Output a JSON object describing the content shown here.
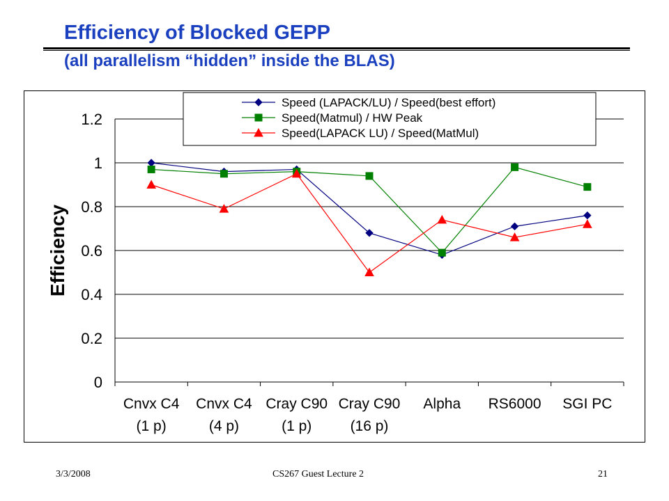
{
  "slide": {
    "title": "Efficiency of Blocked GEPP",
    "subtitle": "(all parallelism “hidden” inside the BLAS)",
    "footer_left": "3/3/2008",
    "footer_center": "CS267 Guest Lecture 2",
    "footer_right": "21"
  },
  "chart_data": {
    "type": "line",
    "title": "",
    "xlabel": "",
    "ylabel": "Efficiency",
    "categories": [
      [
        "Cnvx C4",
        "(1 p)"
      ],
      [
        "Cnvx C4",
        "(4 p)"
      ],
      [
        "Cray C90",
        "(1 p)"
      ],
      [
        "Cray C90",
        "(16 p)"
      ],
      [
        "Alpha",
        ""
      ],
      [
        "RS6000",
        ""
      ],
      [
        "SGI PC",
        ""
      ]
    ],
    "yticks": [
      "0",
      "0.2",
      "0.4",
      "0.6",
      "0.8",
      "1",
      "1.2"
    ],
    "ylim": [
      0,
      1.2
    ],
    "grid": "horizontal",
    "legend_position": "top",
    "series": [
      {
        "name": "Speed (LAPACK/LU) / Speed(best effort)",
        "color": "#000080",
        "marker": "diamond",
        "values": [
          1.0,
          0.96,
          0.97,
          0.68,
          0.58,
          0.71,
          0.76
        ]
      },
      {
        "name": "Speed(Matmul) / HW Peak",
        "color": "#008000",
        "marker": "square",
        "values": [
          0.97,
          0.95,
          0.96,
          0.94,
          0.59,
          0.98,
          0.89
        ]
      },
      {
        "name": "Speed(LAPACK LU) / Speed(MatMul)",
        "color": "#ff0000",
        "marker": "triangle",
        "values": [
          0.9,
          0.79,
          0.95,
          0.5,
          0.74,
          0.66,
          0.72
        ]
      }
    ]
  }
}
